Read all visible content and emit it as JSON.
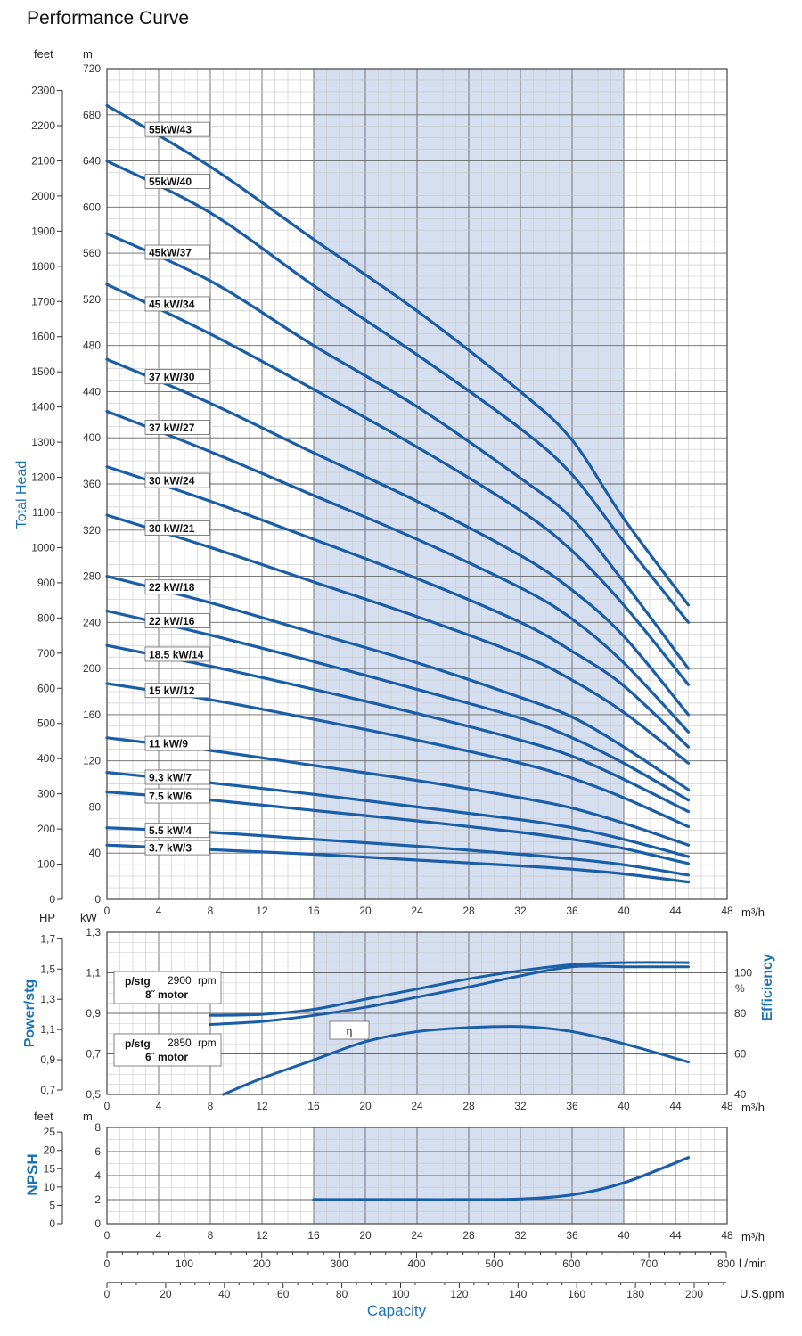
{
  "title": "Performance Curve",
  "colors": {
    "curve": "#1b5ea8",
    "band": "#d5dff0",
    "grid_major": "#666666",
    "grid_minor": "#c8c8c8",
    "axis_label": "#1a73b8"
  },
  "chart_data": [
    {
      "id": "head",
      "type": "line",
      "ylabel": "Total Head",
      "xunit": "m³/h",
      "yunit_left_outer": "feet",
      "yunit_left_inner": "m",
      "xlim": [
        0,
        48
      ],
      "ylim": [
        0,
        720
      ],
      "ylim_feet": [
        0,
        2362
      ],
      "x_ticks": [
        0,
        4,
        8,
        12,
        16,
        20,
        24,
        28,
        32,
        36,
        40,
        44,
        48
      ],
      "y_ticks_m": [
        0,
        40,
        80,
        120,
        160,
        200,
        240,
        280,
        320,
        360,
        400,
        440,
        480,
        520,
        560,
        600,
        640,
        680,
        720
      ],
      "y_ticks_feet": [
        0,
        100,
        200,
        300,
        400,
        500,
        600,
        700,
        800,
        900,
        1000,
        1100,
        1200,
        1300,
        1400,
        1500,
        1600,
        1700,
        1800,
        1900,
        2000,
        2100,
        2200,
        2300
      ],
      "shaded_range": [
        16,
        40
      ],
      "grid": true,
      "series": [
        {
          "name": "55kW/43",
          "x": [
            0,
            8,
            16,
            24,
            32,
            36,
            40,
            45
          ],
          "y": [
            688,
            635,
            572,
            510,
            440,
            398,
            330,
            255
          ]
        },
        {
          "name": "55kW/40",
          "x": [
            0,
            8,
            16,
            24,
            32,
            36,
            40,
            45
          ],
          "y": [
            640,
            595,
            532,
            472,
            408,
            368,
            310,
            240
          ]
        },
        {
          "name": "45kW/37",
          "x": [
            0,
            8,
            16,
            24,
            32,
            36,
            40,
            45
          ],
          "y": [
            577,
            536,
            480,
            427,
            365,
            330,
            275,
            200
          ]
        },
        {
          "name": "45 kW/34",
          "x": [
            0,
            8,
            16,
            24,
            32,
            36,
            40,
            45
          ],
          "y": [
            533,
            490,
            442,
            392,
            337,
            302,
            255,
            186
          ]
        },
        {
          "name": "37 kW/30",
          "x": [
            0,
            8,
            16,
            24,
            32,
            36,
            40,
            45
          ],
          "y": [
            468,
            430,
            387,
            345,
            298,
            268,
            228,
            160
          ]
        },
        {
          "name": "37 kW/27",
          "x": [
            0,
            8,
            16,
            24,
            32,
            36,
            40,
            45
          ],
          "y": [
            423,
            388,
            350,
            312,
            270,
            243,
            205,
            145
          ]
        },
        {
          "name": "30 kW/24",
          "x": [
            0,
            8,
            16,
            24,
            32,
            36,
            40,
            45
          ],
          "y": [
            375,
            345,
            312,
            278,
            240,
            215,
            185,
            132
          ]
        },
        {
          "name": "30 kW/21",
          "x": [
            0,
            8,
            16,
            24,
            32,
            36,
            40,
            45
          ],
          "y": [
            333,
            305,
            275,
            245,
            212,
            190,
            162,
            118
          ]
        },
        {
          "name": "22 kW/18",
          "x": [
            0,
            8,
            16,
            24,
            32,
            36,
            40,
            45
          ],
          "y": [
            280,
            257,
            231,
            205,
            175,
            158,
            132,
            95
          ]
        },
        {
          "name": "22 kW/16",
          "x": [
            0,
            8,
            16,
            24,
            32,
            36,
            40,
            45
          ],
          "y": [
            250,
            229,
            206,
            182,
            157,
            140,
            118,
            86
          ]
        },
        {
          "name": "18.5 kW/14",
          "x": [
            0,
            8,
            16,
            24,
            32,
            36,
            40,
            45
          ],
          "y": [
            220,
            202,
            182,
            161,
            138,
            124,
            104,
            76
          ]
        },
        {
          "name": "15 kW/12",
          "x": [
            0,
            8,
            16,
            24,
            32,
            36,
            40,
            45
          ],
          "y": [
            187,
            173,
            156,
            138,
            118,
            105,
            88,
            63
          ]
        },
        {
          "name": "11 kW/9",
          "x": [
            0,
            8,
            16,
            24,
            32,
            36,
            40,
            45
          ],
          "y": [
            140,
            129,
            116,
            103,
            88,
            79,
            66,
            47
          ]
        },
        {
          "name": "9.3 kW/7",
          "x": [
            0,
            8,
            16,
            24,
            32,
            36,
            40,
            45
          ],
          "y": [
            110,
            101,
            91,
            80,
            69,
            62,
            52,
            37
          ]
        },
        {
          "name": "7.5 kW/6",
          "x": [
            0,
            8,
            16,
            24,
            32,
            36,
            40,
            45
          ],
          "y": [
            93,
            86,
            77,
            68,
            58,
            52,
            44,
            31
          ]
        },
        {
          "name": "5.5 kW/4",
          "x": [
            0,
            8,
            16,
            24,
            32,
            36,
            40,
            45
          ],
          "y": [
            62,
            58,
            52,
            46,
            39,
            35,
            30,
            21
          ]
        },
        {
          "name": "3.7 kW/3",
          "x": [
            0,
            8,
            16,
            24,
            32,
            36,
            40,
            45
          ],
          "y": [
            47,
            43,
            39,
            34,
            29,
            26,
            22,
            15
          ]
        }
      ]
    },
    {
      "id": "power",
      "type": "line",
      "ylabel": "Power/stg",
      "ylabel_right": "Efficiency",
      "xunit": "m³/h",
      "yunit_left_outer": "HP",
      "yunit_left_inner": "kW",
      "yunit_right": "%",
      "xlim": [
        0,
        48
      ],
      "ylim_kw": [
        0.5,
        1.3
      ],
      "ylim_hp": [
        0.7,
        1.7
      ],
      "ylim_pct": [
        40,
        120
      ],
      "x_ticks": [
        0,
        4,
        8,
        12,
        16,
        20,
        24,
        28,
        32,
        36,
        40,
        44,
        48
      ],
      "y_ticks_kw": [
        "0,5",
        "0,7",
        "0,9",
        "1,1",
        "1,3"
      ],
      "y_ticks_hp": [
        "0,7",
        "0,9",
        "1,1",
        "1,3",
        "1,5",
        "1,7"
      ],
      "y_ticks_pct": [
        "40",
        "60",
        "80",
        "100"
      ],
      "shaded_range": [
        16,
        40
      ],
      "grid": true,
      "notes": [
        {
          "line1": "p/stg",
          "rpm": "2900",
          "rpm_unit": "rpm",
          "line2": "8˝ motor"
        },
        {
          "line1": "p/stg",
          "rpm": "2850",
          "rpm_unit": "rpm",
          "line2": "6˝ motor"
        }
      ],
      "eta_label": "η",
      "series": [
        {
          "x": [
            8,
            12,
            16,
            20,
            24,
            28,
            32,
            36,
            40,
            45
          ],
          "y": [
            0.89,
            0.895,
            0.92,
            0.97,
            1.02,
            1.07,
            1.11,
            1.14,
            1.15,
            1.15
          ]
        },
        {
          "x": [
            8,
            12,
            16,
            20,
            24,
            28,
            32,
            36,
            40,
            45
          ],
          "y": [
            0.845,
            0.86,
            0.89,
            0.93,
            0.98,
            1.03,
            1.085,
            1.13,
            1.13,
            1.13
          ]
        },
        {
          "x": [
            9,
            12,
            16,
            20,
            24,
            28,
            32,
            36,
            40,
            45
          ],
          "y_pct": [
            40,
            48,
            57,
            66,
            71,
            73,
            73.5,
            71,
            65,
            56
          ]
        }
      ]
    },
    {
      "id": "npsh",
      "type": "line",
      "ylabel": "NPSH",
      "xunit": "m³/h",
      "yunit_left_outer": "feet",
      "yunit_left_inner": "m",
      "xlim": [
        0,
        48
      ],
      "ylim": [
        0,
        8
      ],
      "x_ticks": [
        0,
        4,
        8,
        12,
        16,
        20,
        24,
        28,
        32,
        36,
        40,
        44,
        48
      ],
      "y_ticks_m": [
        0,
        2,
        4,
        6,
        8
      ],
      "y_ticks_feet": [
        0,
        5,
        10,
        15,
        20,
        25
      ],
      "shaded_range": [
        16,
        40
      ],
      "grid": true,
      "series": [
        {
          "x": [
            16,
            20,
            24,
            28,
            32,
            36,
            40,
            45
          ],
          "y": [
            2.0,
            2.0,
            2.0,
            2.0,
            2.05,
            2.4,
            3.4,
            5.5
          ]
        }
      ]
    }
  ],
  "capacity_axes": {
    "lmin_unit": "l /min",
    "lmin_ticks": [
      0,
      100,
      200,
      300,
      400,
      500,
      600,
      700,
      800
    ],
    "gpm_unit": "U.S.gpm",
    "gpm_ticks": [
      0,
      20,
      40,
      60,
      80,
      100,
      120,
      140,
      160,
      180,
      200
    ],
    "xlabel": "Capacity"
  }
}
